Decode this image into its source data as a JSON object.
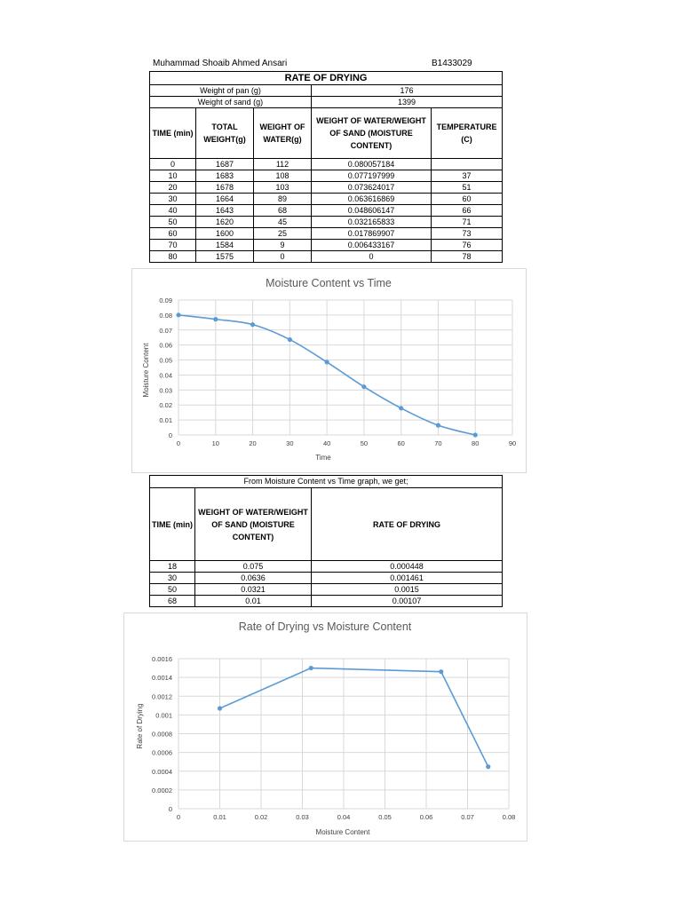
{
  "header": {
    "author": "Muhammad Shoaib Ahmed Ansari",
    "id": "B1433029"
  },
  "table1": {
    "title": "RATE OF DRYING",
    "pan_label": "Weight of pan (g)",
    "pan_value": "176",
    "sand_label": "Weight of sand (g)",
    "sand_value": "1399",
    "columns": [
      "TIME (min)",
      "TOTAL WEIGHT(g)",
      "WEIGHT OF WATER(g)",
      "WEIGHT OF WATER/WEIGHT OF SAND (MOISTURE CONTENT)",
      "TEMPERATURE (C)"
    ],
    "rows": [
      [
        "0",
        "1687",
        "112",
        "0.080057184",
        ""
      ],
      [
        "10",
        "1683",
        "108",
        "0.077197999",
        "37"
      ],
      [
        "20",
        "1678",
        "103",
        "0.073624017",
        "51"
      ],
      [
        "30",
        "1664",
        "89",
        "0.063616869",
        "60"
      ],
      [
        "40",
        "1643",
        "68",
        "0.048606147",
        "66"
      ],
      [
        "50",
        "1620",
        "45",
        "0.032165833",
        "71"
      ],
      [
        "60",
        "1600",
        "25",
        "0.017869907",
        "73"
      ],
      [
        "70",
        "1584",
        "9",
        "0.006433167",
        "76"
      ],
      [
        "80",
        "1575",
        "0",
        "0",
        "78"
      ]
    ]
  },
  "table2": {
    "title": "From Moisture Content vs Time graph, we get;",
    "columns": [
      "TIME (min)",
      "WEIGHT OF WATER/WEIGHT OF SAND (MOISTURE CONTENT)",
      "RATE OF DRYING"
    ],
    "rows": [
      [
        "18",
        "0.075",
        "0.000448"
      ],
      [
        "30",
        "0.0636",
        "0.001461"
      ],
      [
        "50",
        "0.0321",
        "0.0015"
      ],
      [
        "68",
        "0.01",
        "0.00107"
      ]
    ]
  },
  "chart_data": [
    {
      "type": "line",
      "title": "Moisture Content vs Time",
      "xlabel": "Time",
      "ylabel": "Moisture Content",
      "x": [
        0,
        10,
        20,
        30,
        40,
        50,
        60,
        70,
        80
      ],
      "series": [
        {
          "values": [
            0.080057184,
            0.077197999,
            0.073624017,
            0.063616869,
            0.048606147,
            0.032165833,
            0.017869907,
            0.006433167,
            0
          ]
        }
      ],
      "xlim": [
        0,
        90
      ],
      "ylim": [
        0,
        0.09
      ],
      "xticks": [
        "0",
        "10",
        "20",
        "30",
        "40",
        "50",
        "60",
        "70",
        "80",
        "90"
      ],
      "yticks": [
        "0",
        "0.01",
        "0.02",
        "0.03",
        "0.04",
        "0.05",
        "0.06",
        "0.07",
        "0.08",
        "0.09"
      ],
      "grid": true,
      "smooth": true,
      "color": "#5b9bd5"
    },
    {
      "type": "line",
      "title": "Rate of Drying vs Moisture Content",
      "xlabel": "Moisture Content",
      "ylabel": "Rate of Drying",
      "x": [
        0.01,
        0.0321,
        0.0636,
        0.075
      ],
      "series": [
        {
          "values": [
            0.00107,
            0.0015,
            0.001461,
            0.000448
          ]
        }
      ],
      "xlim": [
        0,
        0.08
      ],
      "ylim": [
        0,
        0.0016
      ],
      "xticks": [
        "0",
        "0.01",
        "0.02",
        "0.03",
        "0.04",
        "0.05",
        "0.06",
        "0.07",
        "0.08"
      ],
      "yticks": [
        "0",
        "0.0002",
        "0.0004",
        "0.0006",
        "0.0008",
        "0.001",
        "0.0012",
        "0.0014",
        "0.0016"
      ],
      "grid": true,
      "smooth": false,
      "color": "#5b9bd5"
    }
  ]
}
